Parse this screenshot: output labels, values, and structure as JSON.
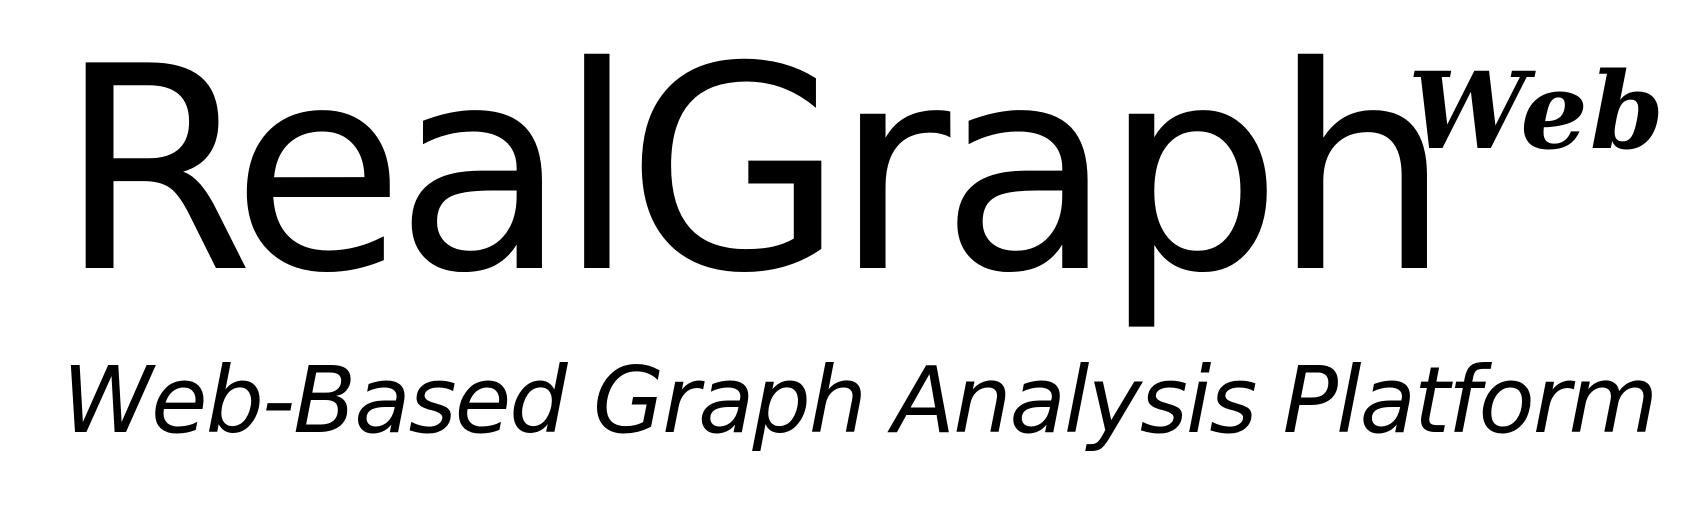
{
  "logo": {
    "title": "RealGraph",
    "superscript": "Web",
    "subtitle": "Web-Based Graph Analysis Platform"
  }
}
